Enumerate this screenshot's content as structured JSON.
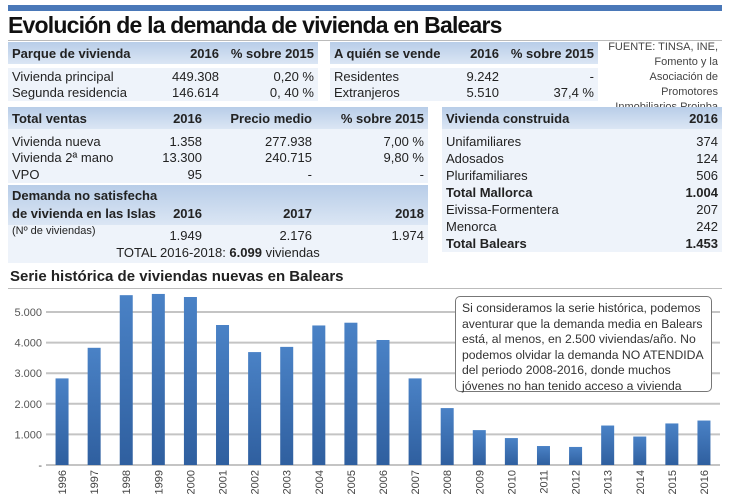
{
  "title": "Evolución de la demanda de vivienda en Balears",
  "source": "FUENTE: TINSA, INE, Fomento y la Asociación de Promotores Inmobiliarios Proinba",
  "parque": {
    "headers": [
      "Parque de vivienda",
      "2016",
      "% sobre 2015"
    ],
    "rows": [
      [
        "Vivienda principal",
        "449.308",
        "0,20 %"
      ],
      [
        "Segunda residencia",
        "146.614",
        "0, 40 %"
      ]
    ]
  },
  "vende": {
    "headers": [
      "A quién se vende",
      "2016",
      "% sobre 2015"
    ],
    "rows": [
      [
        "Residentes",
        "9.242",
        "-"
      ],
      [
        "Extranjeros",
        "5.510",
        "37,4 %"
      ]
    ]
  },
  "ventas": {
    "headers": [
      "Total ventas",
      "2016",
      "Precio medio",
      "% sobre 2015"
    ],
    "rows": [
      [
        "Vivienda nueva",
        "1.358",
        "277.938",
        "7,00 %"
      ],
      [
        "Vivienda 2ª mano",
        "13.300",
        "240.715",
        "9,80 %"
      ],
      [
        "VPO",
        "95",
        "-",
        "-"
      ]
    ]
  },
  "demanda": {
    "header1": "Demanda no satisfecha",
    "header2": "de vivienda en las Islas",
    "years": [
      "2016",
      "2017",
      "2018"
    ],
    "sublabel": "(Nº de viviendas)",
    "values": [
      "1.949",
      "2.176",
      "1.974"
    ],
    "total_prefix": "TOTAL 2016-2018: ",
    "total_value": "6.099",
    "total_suffix": " viviendas"
  },
  "construida": {
    "headers": [
      "Vivienda construida",
      "2016"
    ],
    "rows": [
      [
        "Unifamiliares",
        "374",
        false
      ],
      [
        "Adosados",
        "124",
        false
      ],
      [
        "Plurifamiliares",
        "506",
        false
      ],
      [
        "Total Mallorca",
        "1.004",
        true
      ],
      [
        "Eivissa-Formentera",
        "207",
        false
      ],
      [
        "Menorca",
        "242",
        false
      ],
      [
        "Total Balears",
        "1.453",
        true
      ]
    ]
  },
  "note": "Si consideramos la serie histórica, podemos aventurar que la demanda media en Balears está, al menos, en 2.500 viviendas/año. No podemos olvidar la demanda NO ATENDIDA del periodo 2008-2016, donde muchos jóvenes no han tenido acceso a vivienda",
  "chart_data": {
    "type": "bar",
    "title": "Serie histórica de viviendas nuevas en Balears",
    "categories": [
      "1996",
      "1997",
      "1998",
      "1999",
      "2000",
      "2001",
      "2002",
      "2003",
      "2004",
      "2005",
      "2006",
      "2007",
      "2008",
      "2009",
      "2010",
      "2011",
      "2012",
      "2013",
      "2014",
      "2015",
      "2016"
    ],
    "values": [
      2830,
      3830,
      5550,
      5590,
      5490,
      4575,
      3690,
      3860,
      4560,
      4650,
      4085,
      2830,
      1860,
      1140,
      880,
      620,
      590,
      1290,
      930,
      1358,
      1453
    ],
    "yticks": [
      0,
      1000,
      2000,
      3000,
      4000,
      5000
    ],
    "ytick_labels": [
      "-",
      "1.000",
      "2.000",
      "3.000",
      "4.000",
      "5.000"
    ],
    "ylim": [
      0,
      5600
    ],
    "xlabel": "",
    "ylabel": "",
    "grid": true,
    "color": "#3f73b5"
  }
}
